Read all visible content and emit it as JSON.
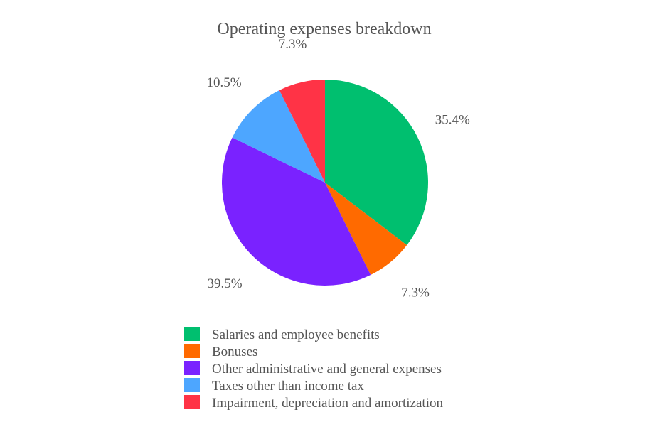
{
  "chart_data": {
    "type": "pie",
    "title": "Operating expenses breakdown",
    "categories": [
      "Salaries and employee benefits",
      "Bonuses",
      "Other administrative and general expenses",
      "Taxes other than income tax",
      "Impairment, depreciation and amortization"
    ],
    "values": [
      35.4,
      7.3,
      39.5,
      10.5,
      7.3
    ],
    "value_labels": [
      "35.4%",
      "7.3%",
      "39.5%",
      "10.5%",
      "7.3%"
    ],
    "colors": [
      "#00bf6f",
      "#ff6a00",
      "#7a22ff",
      "#4da6ff",
      "#ff3346"
    ],
    "start_angle_deg": 0,
    "direction": "clockwise",
    "legend_position": "bottom"
  }
}
